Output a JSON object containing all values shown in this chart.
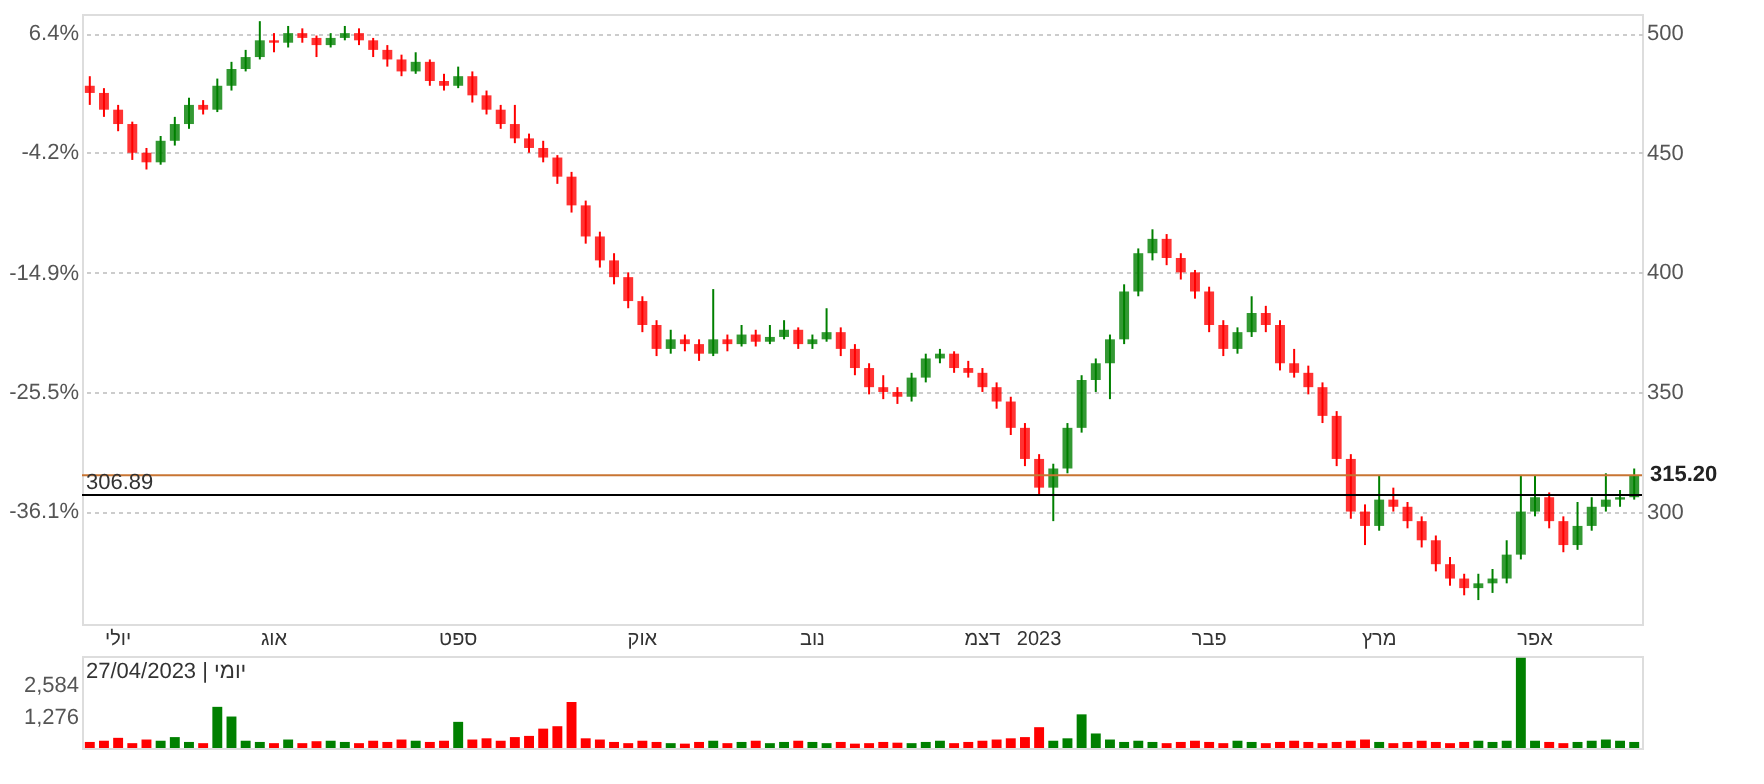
{
  "chart_data": [
    {
      "type": "candlestick",
      "categories": [
        null,
        null,
        "יולי",
        null,
        null,
        null,
        null,
        null,
        null,
        null,
        null,
        null,
        null,
        "אוג",
        null,
        null,
        null,
        null,
        null,
        null,
        null,
        null,
        null,
        null,
        null,
        null,
        "ספט",
        null,
        null,
        null,
        null,
        null,
        null,
        null,
        null,
        null,
        null,
        null,
        null,
        "אוק",
        null,
        null,
        null,
        null,
        null,
        null,
        null,
        null,
        null,
        null,
        null,
        "נוב",
        null,
        null,
        null,
        null,
        null,
        null,
        null,
        null,
        null,
        null,
        null,
        "דצמ",
        null,
        null,
        null,
        "2023",
        null,
        null,
        null,
        null,
        null,
        null,
        null,
        null,
        null,
        null,
        null,
        "פבר",
        null,
        null,
        null,
        null,
        null,
        null,
        null,
        null,
        null,
        null,
        null,
        "מרץ",
        null,
        null,
        null,
        null,
        null,
        null,
        null,
        null,
        null,
        null,
        "אפר",
        null,
        null,
        null,
        null,
        null,
        null,
        null
      ],
      "ohlc": [
        [
          478,
          482,
          470,
          475
        ],
        [
          475,
          477,
          465,
          468
        ],
        [
          468,
          470,
          459,
          462
        ],
        [
          462,
          463,
          447,
          450
        ],
        [
          450,
          452,
          443,
          446
        ],
        [
          446,
          457,
          445,
          455
        ],
        [
          455,
          465,
          453,
          462
        ],
        [
          462,
          473,
          460,
          470
        ],
        [
          470,
          472,
          466,
          468
        ],
        [
          468,
          481,
          467,
          478
        ],
        [
          478,
          488,
          476,
          485
        ],
        [
          485,
          493,
          484,
          490
        ],
        [
          490,
          505,
          489,
          497
        ],
        [
          497,
          500,
          492,
          496
        ],
        [
          496,
          503,
          494,
          500
        ],
        [
          500,
          502,
          496,
          498
        ],
        [
          498,
          499,
          490,
          495
        ],
        [
          495,
          500,
          494,
          498
        ],
        [
          498,
          503,
          497,
          500
        ],
        [
          500,
          502,
          495,
          497
        ],
        [
          497,
          498,
          490,
          493
        ],
        [
          493,
          495,
          486,
          489
        ],
        [
          489,
          491,
          482,
          484
        ],
        [
          484,
          492,
          483,
          488
        ],
        [
          488,
          489,
          478,
          480
        ],
        [
          480,
          483,
          476,
          478
        ],
        [
          478,
          486,
          477,
          482
        ],
        [
          482,
          484,
          471,
          474
        ],
        [
          474,
          476,
          466,
          468
        ],
        [
          468,
          470,
          460,
          462
        ],
        [
          462,
          470,
          454,
          456
        ],
        [
          456,
          458,
          450,
          452
        ],
        [
          452,
          455,
          446,
          448
        ],
        [
          448,
          449,
          437,
          440
        ],
        [
          440,
          442,
          425,
          428
        ],
        [
          428,
          430,
          412,
          415
        ],
        [
          415,
          417,
          402,
          405
        ],
        [
          405,
          408,
          395,
          398
        ],
        [
          398,
          400,
          385,
          388
        ],
        [
          388,
          390,
          375,
          378
        ],
        [
          378,
          380,
          365,
          368
        ],
        [
          368,
          376,
          366,
          372
        ],
        [
          372,
          374,
          367,
          370
        ],
        [
          370,
          372,
          363,
          366
        ],
        [
          366,
          393,
          365,
          372
        ],
        [
          372,
          374,
          367,
          370
        ],
        [
          370,
          378,
          369,
          374
        ],
        [
          374,
          376,
          369,
          371
        ],
        [
          371,
          378,
          370,
          373
        ],
        [
          373,
          380,
          372,
          376
        ],
        [
          376,
          377,
          368,
          370
        ],
        [
          370,
          374,
          368,
          372
        ],
        [
          372,
          385,
          371,
          375
        ],
        [
          375,
          377,
          365,
          368
        ],
        [
          368,
          370,
          357,
          360
        ],
        [
          360,
          362,
          349,
          352
        ],
        [
          352,
          357,
          347,
          350
        ],
        [
          350,
          352,
          345,
          348
        ],
        [
          348,
          358,
          346,
          356
        ],
        [
          356,
          366,
          354,
          364
        ],
        [
          364,
          368,
          362,
          366
        ],
        [
          366,
          367,
          358,
          360
        ],
        [
          360,
          363,
          356,
          358
        ],
        [
          358,
          360,
          350,
          352
        ],
        [
          352,
          354,
          343,
          346
        ],
        [
          346,
          348,
          332,
          335
        ],
        [
          335,
          337,
          319,
          322
        ],
        [
          322,
          324,
          307,
          310
        ],
        [
          310,
          320,
          296,
          318
        ],
        [
          318,
          337,
          316,
          335
        ],
        [
          335,
          357,
          333,
          355
        ],
        [
          355,
          364,
          350,
          362
        ],
        [
          362,
          374,
          347,
          372
        ],
        [
          372,
          395,
          370,
          392
        ],
        [
          392,
          410,
          390,
          408
        ],
        [
          408,
          418,
          405,
          414
        ],
        [
          414,
          416,
          403,
          406
        ],
        [
          406,
          408,
          397,
          400
        ],
        [
          400,
          401,
          389,
          392
        ],
        [
          392,
          394,
          375,
          378
        ],
        [
          378,
          380,
          365,
          368
        ],
        [
          368,
          377,
          366,
          375
        ],
        [
          375,
          390,
          373,
          383
        ],
        [
          383,
          386,
          375,
          378
        ],
        [
          378,
          380,
          359,
          362
        ],
        [
          362,
          368,
          356,
          358
        ],
        [
          358,
          361,
          349,
          352
        ],
        [
          352,
          354,
          337,
          340
        ],
        [
          340,
          342,
          319,
          322
        ],
        [
          322,
          324,
          297,
          300
        ],
        [
          300,
          303,
          286,
          294
        ],
        [
          294,
          315,
          292,
          305
        ],
        [
          305,
          310,
          300,
          302
        ],
        [
          302,
          304,
          293,
          296
        ],
        [
          296,
          298,
          285,
          288
        ],
        [
          288,
          290,
          275,
          278
        ],
        [
          278,
          281,
          269,
          272
        ],
        [
          272,
          274,
          265,
          268
        ],
        [
          268,
          274,
          263,
          270
        ],
        [
          270,
          276,
          266,
          272
        ],
        [
          272,
          288,
          270,
          282
        ],
        [
          282,
          315,
          280,
          300
        ],
        [
          300,
          315,
          298,
          306
        ],
        [
          306,
          308,
          293,
          296
        ],
        [
          296,
          298,
          283,
          286
        ],
        [
          286,
          304,
          284,
          294
        ],
        [
          294,
          306,
          292,
          302
        ],
        [
          302,
          316,
          300,
          305
        ],
        [
          305,
          309,
          302,
          306
        ],
        [
          306,
          318,
          305,
          315
        ]
      ],
      "colors": [
        "#ff0000",
        "#ff0000",
        "#ff0000",
        "#ff0000",
        "#ff0000",
        "#008000",
        "#008000",
        "#008000",
        "#ff0000",
        "#008000",
        "#008000",
        "#008000",
        "#008000",
        "#ff0000",
        "#008000",
        "#ff0000",
        "#ff0000",
        "#008000",
        "#008000",
        "#ff0000",
        "#ff0000",
        "#ff0000",
        "#ff0000",
        "#008000",
        "#ff0000",
        "#ff0000",
        "#008000",
        "#ff0000",
        "#ff0000",
        "#ff0000",
        "#ff0000",
        "#ff0000",
        "#ff0000",
        "#ff0000",
        "#ff0000",
        "#ff0000",
        "#ff0000",
        "#ff0000",
        "#ff0000",
        "#ff0000",
        "#ff0000",
        "#008000",
        "#ff0000",
        "#ff0000",
        "#008000",
        "#ff0000",
        "#008000",
        "#ff0000",
        "#008000",
        "#008000",
        "#ff0000",
        "#008000",
        "#008000",
        "#ff0000",
        "#ff0000",
        "#ff0000",
        "#ff0000",
        "#ff0000",
        "#008000",
        "#008000",
        "#008000",
        "#ff0000",
        "#ff0000",
        "#ff0000",
        "#ff0000",
        "#ff0000",
        "#ff0000",
        "#ff0000",
        "#008000",
        "#008000",
        "#008000",
        "#008000",
        "#008000",
        "#008000",
        "#008000",
        "#008000",
        "#ff0000",
        "#ff0000",
        "#ff0000",
        "#ff0000",
        "#ff0000",
        "#008000",
        "#008000",
        "#ff0000",
        "#ff0000",
        "#ff0000",
        "#ff0000",
        "#ff0000",
        "#ff0000",
        "#ff0000",
        "#ff0000",
        "#008000",
        "#ff0000",
        "#ff0000",
        "#ff0000",
        "#ff0000",
        "#ff0000",
        "#ff0000",
        "#008000",
        "#008000",
        "#008000",
        "#008000",
        "#008000",
        "#ff0000",
        "#ff0000",
        "#008000",
        "#008000",
        "#008000",
        "#008000",
        "#008000"
      ],
      "ylim": [
        253,
        508
      ],
      "yticks": [
        300,
        350,
        400,
        450,
        500
      ],
      "y2lim": [
        -46.1,
        8.1
      ],
      "y2ticks": [
        {
          "value": 6.4,
          "label": "6.4%"
        },
        {
          "value": -4.2,
          "label": "-4.2%"
        },
        {
          "value": -14.9,
          "label": "-14.9%"
        },
        {
          "value": -25.5,
          "label": "-25.5%"
        },
        {
          "value": -36.1,
          "label": "-36.1%"
        }
      ],
      "ref_lines": [
        {
          "axis": "y",
          "value": 306.89,
          "label": "306.89",
          "color": "#000000"
        },
        {
          "axis": "y",
          "value": 315.2,
          "label": "315.20",
          "color": "#c87533"
        }
      ],
      "grid": "y"
    },
    {
      "type": "bar",
      "categories": [
        null,
        null,
        null,
        null,
        null,
        null,
        null,
        null,
        null,
        null,
        null,
        null,
        null,
        null,
        null,
        null,
        null,
        null,
        null,
        null,
        null,
        null,
        null,
        null,
        null,
        null,
        null,
        null,
        null,
        null,
        null,
        null,
        null,
        null,
        null,
        null,
        null,
        null,
        null,
        null,
        null,
        null,
        null,
        null,
        null,
        null,
        null,
        null,
        null,
        null,
        null,
        null,
        null,
        null,
        null,
        null,
        null,
        null,
        null,
        null,
        null,
        null,
        null,
        null,
        null,
        null,
        null,
        null,
        null,
        null,
        null,
        null,
        null,
        null,
        null,
        null,
        null,
        null,
        null,
        null,
        null,
        null,
        null,
        null,
        null,
        null,
        null,
        null,
        null,
        null,
        null,
        null,
        null,
        null,
        null,
        null,
        null,
        null,
        null,
        null,
        null,
        null,
        null,
        null,
        null,
        null,
        null,
        null,
        null,
        null
      ],
      "values": [
        250,
        300,
        420,
        200,
        350,
        300,
        450,
        250,
        200,
        1700,
        1300,
        300,
        250,
        200,
        350,
        200,
        280,
        300,
        250,
        200,
        300,
        250,
        350,
        300,
        250,
        300,
        1080,
        350,
        400,
        300,
        450,
        500,
        800,
        900,
        1900,
        400,
        350,
        250,
        200,
        300,
        250,
        200,
        180,
        250,
        300,
        200,
        250,
        300,
        200,
        250,
        300,
        250,
        200,
        250,
        180,
        200,
        250,
        220,
        200,
        250,
        300,
        200,
        250,
        300,
        350,
        400,
        450,
        860,
        300,
        400,
        1390,
        600,
        350,
        250,
        300,
        250,
        200,
        250,
        300,
        250,
        200,
        300,
        250,
        200,
        250,
        300,
        250,
        200,
        250,
        300,
        350,
        250,
        200,
        250,
        300,
        250,
        200,
        250,
        300,
        250,
        300,
        3730,
        300,
        250,
        200,
        250,
        300,
        350,
        300,
        250
      ],
      "colors": [
        "#ff0000",
        "#ff0000",
        "#ff0000",
        "#ff0000",
        "#ff0000",
        "#008000",
        "#008000",
        "#008000",
        "#ff0000",
        "#008000",
        "#008000",
        "#008000",
        "#008000",
        "#ff0000",
        "#008000",
        "#ff0000",
        "#ff0000",
        "#008000",
        "#008000",
        "#ff0000",
        "#ff0000",
        "#ff0000",
        "#ff0000",
        "#008000",
        "#ff0000",
        "#ff0000",
        "#008000",
        "#ff0000",
        "#ff0000",
        "#ff0000",
        "#ff0000",
        "#ff0000",
        "#ff0000",
        "#ff0000",
        "#ff0000",
        "#ff0000",
        "#ff0000",
        "#ff0000",
        "#ff0000",
        "#ff0000",
        "#ff0000",
        "#008000",
        "#ff0000",
        "#ff0000",
        "#008000",
        "#ff0000",
        "#008000",
        "#ff0000",
        "#008000",
        "#008000",
        "#ff0000",
        "#008000",
        "#008000",
        "#ff0000",
        "#ff0000",
        "#ff0000",
        "#ff0000",
        "#ff0000",
        "#008000",
        "#008000",
        "#008000",
        "#ff0000",
        "#ff0000",
        "#ff0000",
        "#ff0000",
        "#ff0000",
        "#ff0000",
        "#ff0000",
        "#008000",
        "#008000",
        "#008000",
        "#008000",
        "#008000",
        "#008000",
        "#008000",
        "#008000",
        "#ff0000",
        "#ff0000",
        "#ff0000",
        "#ff0000",
        "#ff0000",
        "#008000",
        "#008000",
        "#ff0000",
        "#ff0000",
        "#ff0000",
        "#ff0000",
        "#ff0000",
        "#ff0000",
        "#ff0000",
        "#ff0000",
        "#008000",
        "#ff0000",
        "#ff0000",
        "#ff0000",
        "#ff0000",
        "#ff0000",
        "#ff0000",
        "#008000",
        "#008000",
        "#008000",
        "#008000",
        "#008000",
        "#ff0000",
        "#ff0000",
        "#008000",
        "#008000",
        "#008000",
        "#008000",
        "#008000"
      ],
      "ylim": [
        0,
        3800
      ],
      "yticks": [
        {
          "value": 1276,
          "label": "1,276"
        },
        {
          "value": 2584,
          "label": "2,584"
        }
      ],
      "tick_labels": "y",
      "annotations": [
        "יומי | 27/04/2023"
      ]
    }
  ]
}
